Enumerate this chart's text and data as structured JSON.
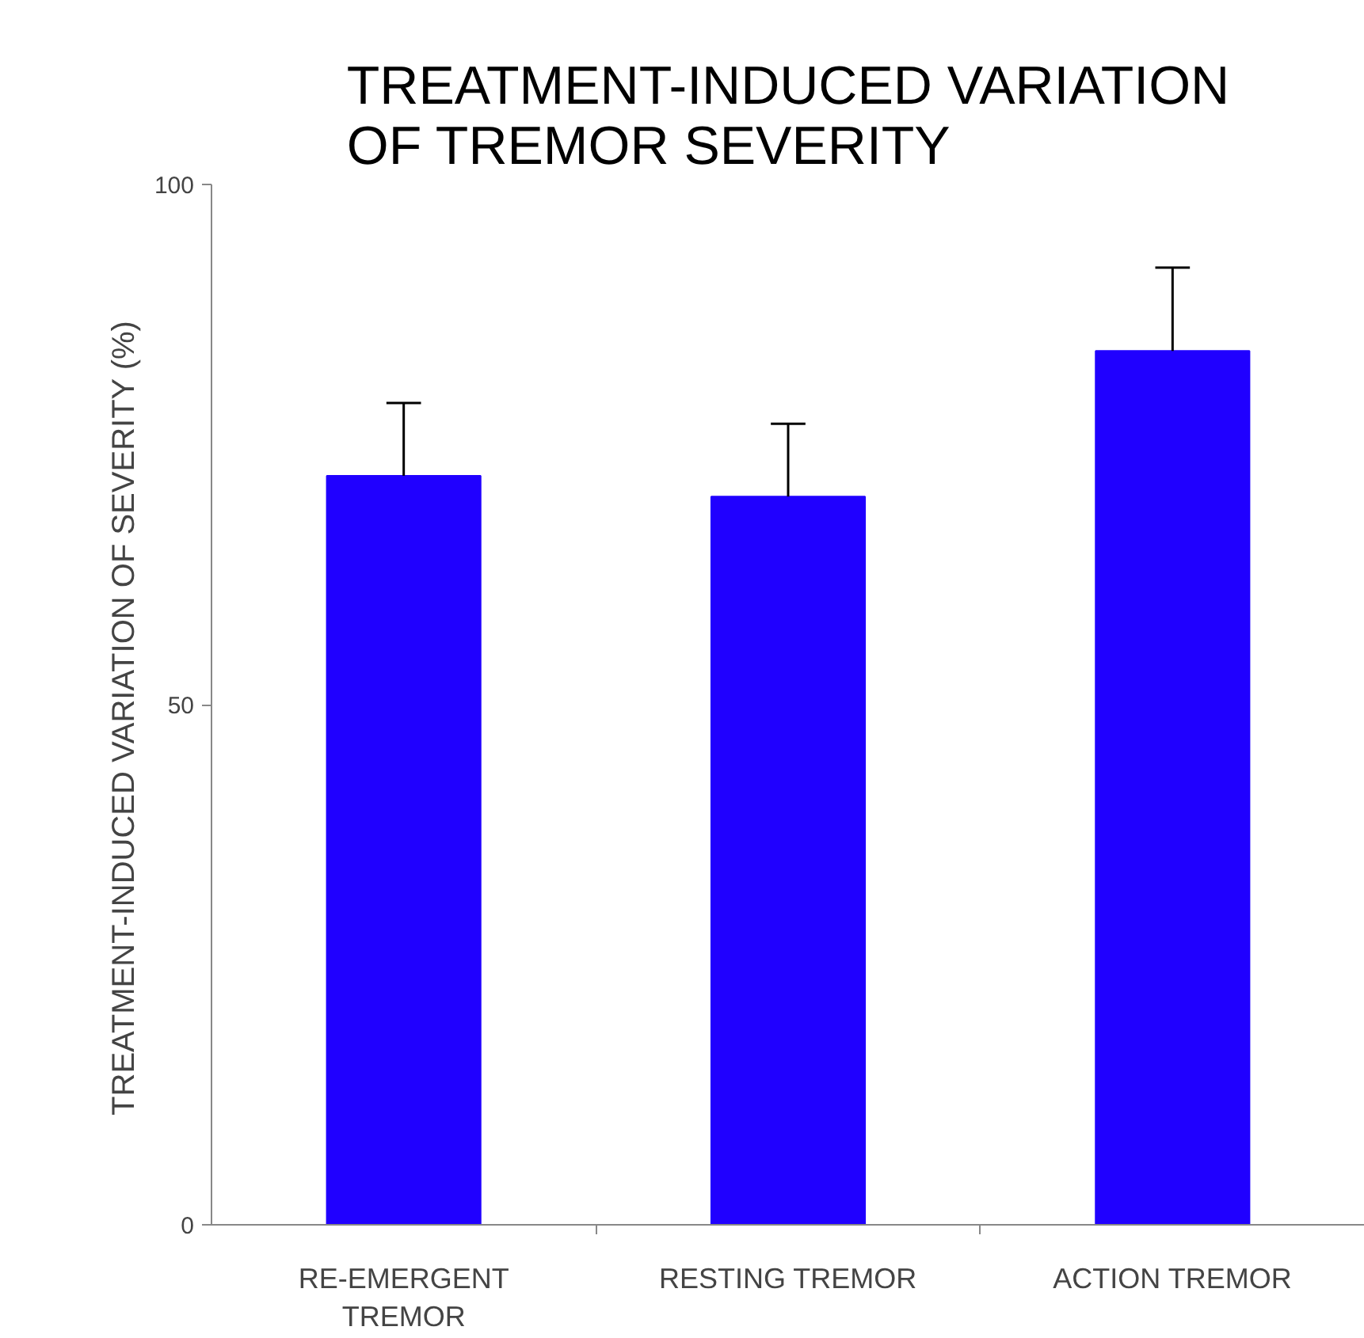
{
  "chart_data": {
    "type": "bar",
    "title": "TREATMENT-INDUCED VARIATION OF TREMOR SEVERITY",
    "ylabel": "TREATMENT-INDUCED  VARIATION  OF SEVERITY  (%)",
    "categories": [
      "RE-EMERGENT TREMOR",
      "RESTING TREMOR",
      "ACTION TREMOR"
    ],
    "values": [
      72,
      70,
      84
    ],
    "color": "#2000ff",
    "errors": [
      [
        72,
        79
      ],
      [
        70,
        77
      ],
      [
        84,
        92
      ]
    ],
    "ylim": [
      0,
      100
    ],
    "yticks": [
      0,
      50,
      100
    ],
    "grid": false
  }
}
